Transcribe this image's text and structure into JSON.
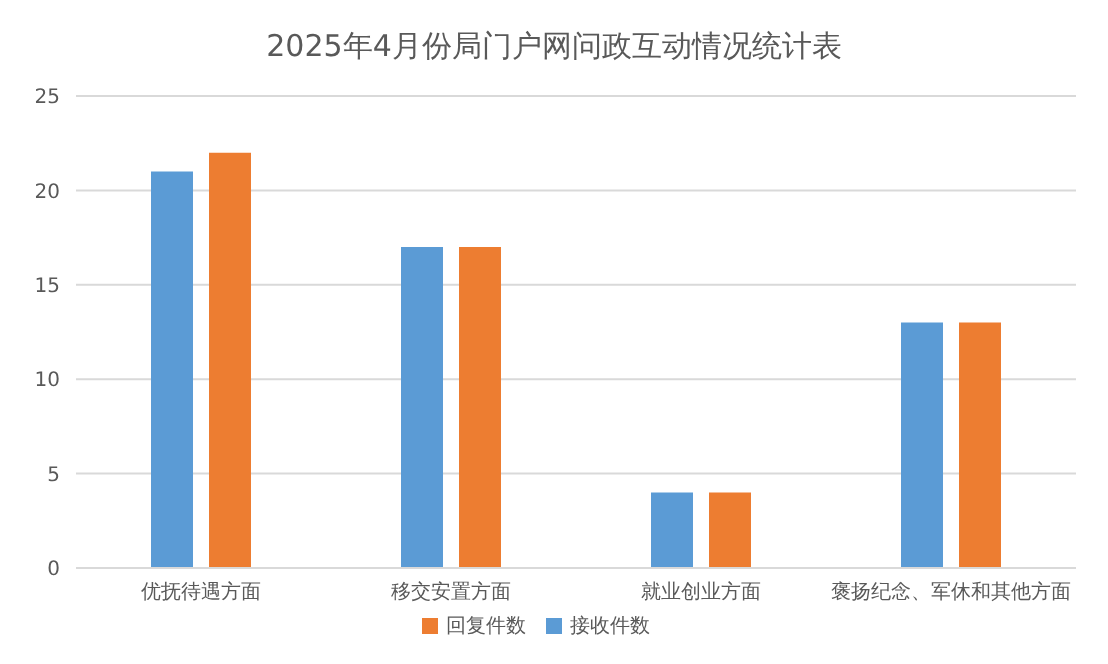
{
  "chart_data": {
    "type": "bar",
    "title": "2025年4月份局门户网问政互动情况统计表",
    "categories": [
      "优抚待遇方面",
      "移交安置方面",
      "就业创业方面",
      "褒扬纪念、军休和其他方面"
    ],
    "series": [
      {
        "name": "接收件数",
        "color": "#5b9bd5",
        "values": [
          21,
          17,
          4,
          13
        ]
      },
      {
        "name": "回复件数",
        "color": "#ed7d31",
        "values": [
          22,
          17,
          4,
          13
        ]
      }
    ],
    "ylim": [
      0,
      25
    ],
    "yticks": [
      0,
      5,
      10,
      15,
      20,
      25
    ],
    "grid": "y",
    "legend": "bottom"
  }
}
